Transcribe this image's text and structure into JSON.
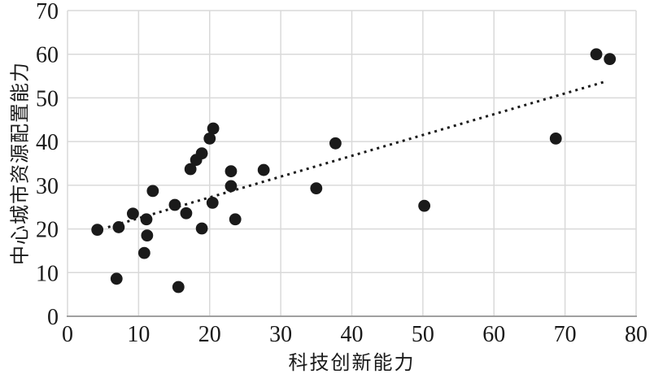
{
  "chart_data": {
    "type": "scatter",
    "title": "",
    "xlabel": "科技创新能力",
    "ylabel": "中心城市资源配置能力",
    "xlim": [
      0,
      80
    ],
    "ylim": [
      0,
      70
    ],
    "x_ticks": [
      0,
      10,
      20,
      30,
      40,
      50,
      60,
      70,
      80
    ],
    "y_ticks": [
      0,
      10,
      20,
      30,
      40,
      50,
      60,
      70
    ],
    "grid": true,
    "legend": "none",
    "point_color": "#1a1a1a",
    "grid_color": "#d9d9d9",
    "axis_color": "#a0a0a0",
    "points": [
      [
        4.2,
        19.8
      ],
      [
        6.9,
        8.6
      ],
      [
        7.2,
        20.4
      ],
      [
        9.2,
        23.5
      ],
      [
        10.8,
        14.5
      ],
      [
        11.1,
        22.2
      ],
      [
        11.2,
        18.5
      ],
      [
        12.0,
        28.7
      ],
      [
        15.1,
        25.5
      ],
      [
        15.6,
        6.7
      ],
      [
        16.7,
        23.6
      ],
      [
        17.3,
        33.7
      ],
      [
        18.1,
        35.8
      ],
      [
        18.9,
        37.3
      ],
      [
        18.9,
        20.1
      ],
      [
        20.0,
        40.7
      ],
      [
        20.4,
        26.0
      ],
      [
        20.5,
        43.0
      ],
      [
        23.0,
        33.2
      ],
      [
        23.0,
        29.8
      ],
      [
        23.6,
        22.2
      ],
      [
        27.6,
        33.5
      ],
      [
        35.0,
        29.3
      ],
      [
        37.7,
        39.6
      ],
      [
        50.2,
        25.3
      ],
      [
        68.7,
        40.7
      ],
      [
        74.4,
        60.0
      ],
      [
        76.3,
        58.9
      ]
    ],
    "trendline": {
      "style": "dotted",
      "x1": 5.7,
      "y1": 20.4,
      "x2": 75.6,
      "y2": 53.7
    }
  }
}
